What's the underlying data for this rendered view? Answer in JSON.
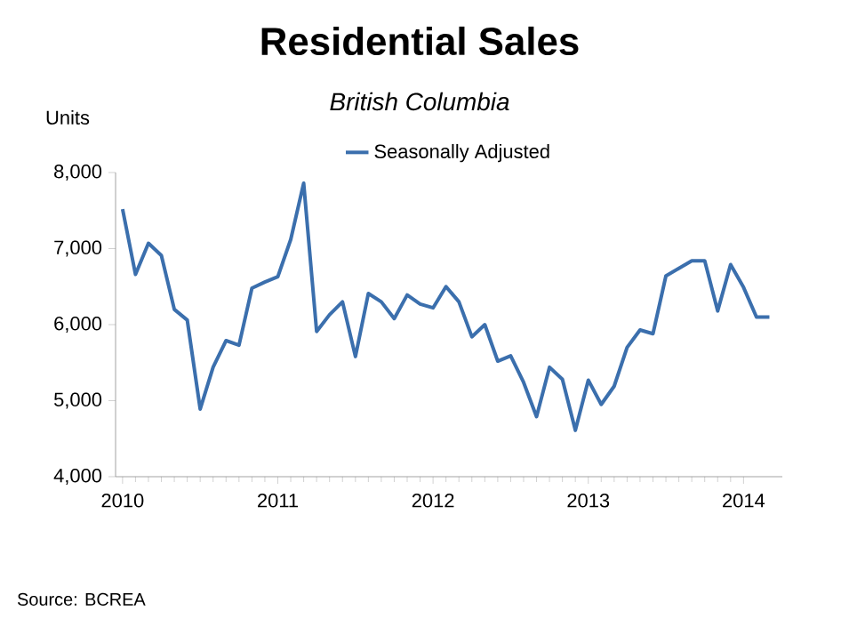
{
  "chart_data": {
    "type": "line",
    "title": "Residential Sales",
    "subtitle": "British Columbia",
    "ylabel": "Units",
    "x": [
      "2010-01",
      "2010-02",
      "2010-03",
      "2010-04",
      "2010-05",
      "2010-06",
      "2010-07",
      "2010-08",
      "2010-09",
      "2010-10",
      "2010-11",
      "2010-12",
      "2011-01",
      "2011-02",
      "2011-03",
      "2011-04",
      "2011-05",
      "2011-06",
      "2011-07",
      "2011-08",
      "2011-09",
      "2011-10",
      "2011-11",
      "2011-12",
      "2012-01",
      "2012-02",
      "2012-03",
      "2012-04",
      "2012-05",
      "2012-06",
      "2012-07",
      "2012-08",
      "2012-09",
      "2012-10",
      "2012-11",
      "2012-12",
      "2013-01",
      "2013-02",
      "2013-03",
      "2013-04",
      "2013-05",
      "2013-06",
      "2013-07",
      "2013-08",
      "2013-09",
      "2013-10",
      "2013-11",
      "2013-12",
      "2014-01",
      "2014-02",
      "2014-03"
    ],
    "series": [
      {
        "name": "Seasonally Adjusted",
        "color": "#3b6fad",
        "values": [
          7520,
          6660,
          7070,
          6910,
          6200,
          6060,
          4890,
          5440,
          5790,
          5730,
          6480,
          6560,
          6630,
          7120,
          7860,
          5910,
          6130,
          6300,
          5580,
          6410,
          6300,
          6080,
          6390,
          6270,
          6220,
          6500,
          6300,
          5840,
          6000,
          5520,
          5590,
          5240,
          4790,
          5440,
          5280,
          4610,
          5270,
          4950,
          5190,
          5700,
          5930,
          5880,
          6640,
          6740,
          6840,
          6840,
          6180,
          6790,
          6490,
          6100,
          6100
        ]
      }
    ],
    "xlim": [
      "2009-12-15",
      "2014-04"
    ],
    "xticks": [
      "2010",
      "2011",
      "2012",
      "2013",
      "2014"
    ],
    "ylim": [
      4000,
      8000
    ],
    "yticks": [
      {
        "value": 4000,
        "label": "4,000"
      },
      {
        "value": 5000,
        "label": "5,000"
      },
      {
        "value": 6000,
        "label": "6,000"
      },
      {
        "value": 7000,
        "label": "7,000"
      },
      {
        "value": 8000,
        "label": "8,000"
      }
    ],
    "grid": false,
    "legend": "top",
    "marker": "none",
    "line_style": "solid",
    "annotations": [
      "Source: BCREA"
    ]
  }
}
